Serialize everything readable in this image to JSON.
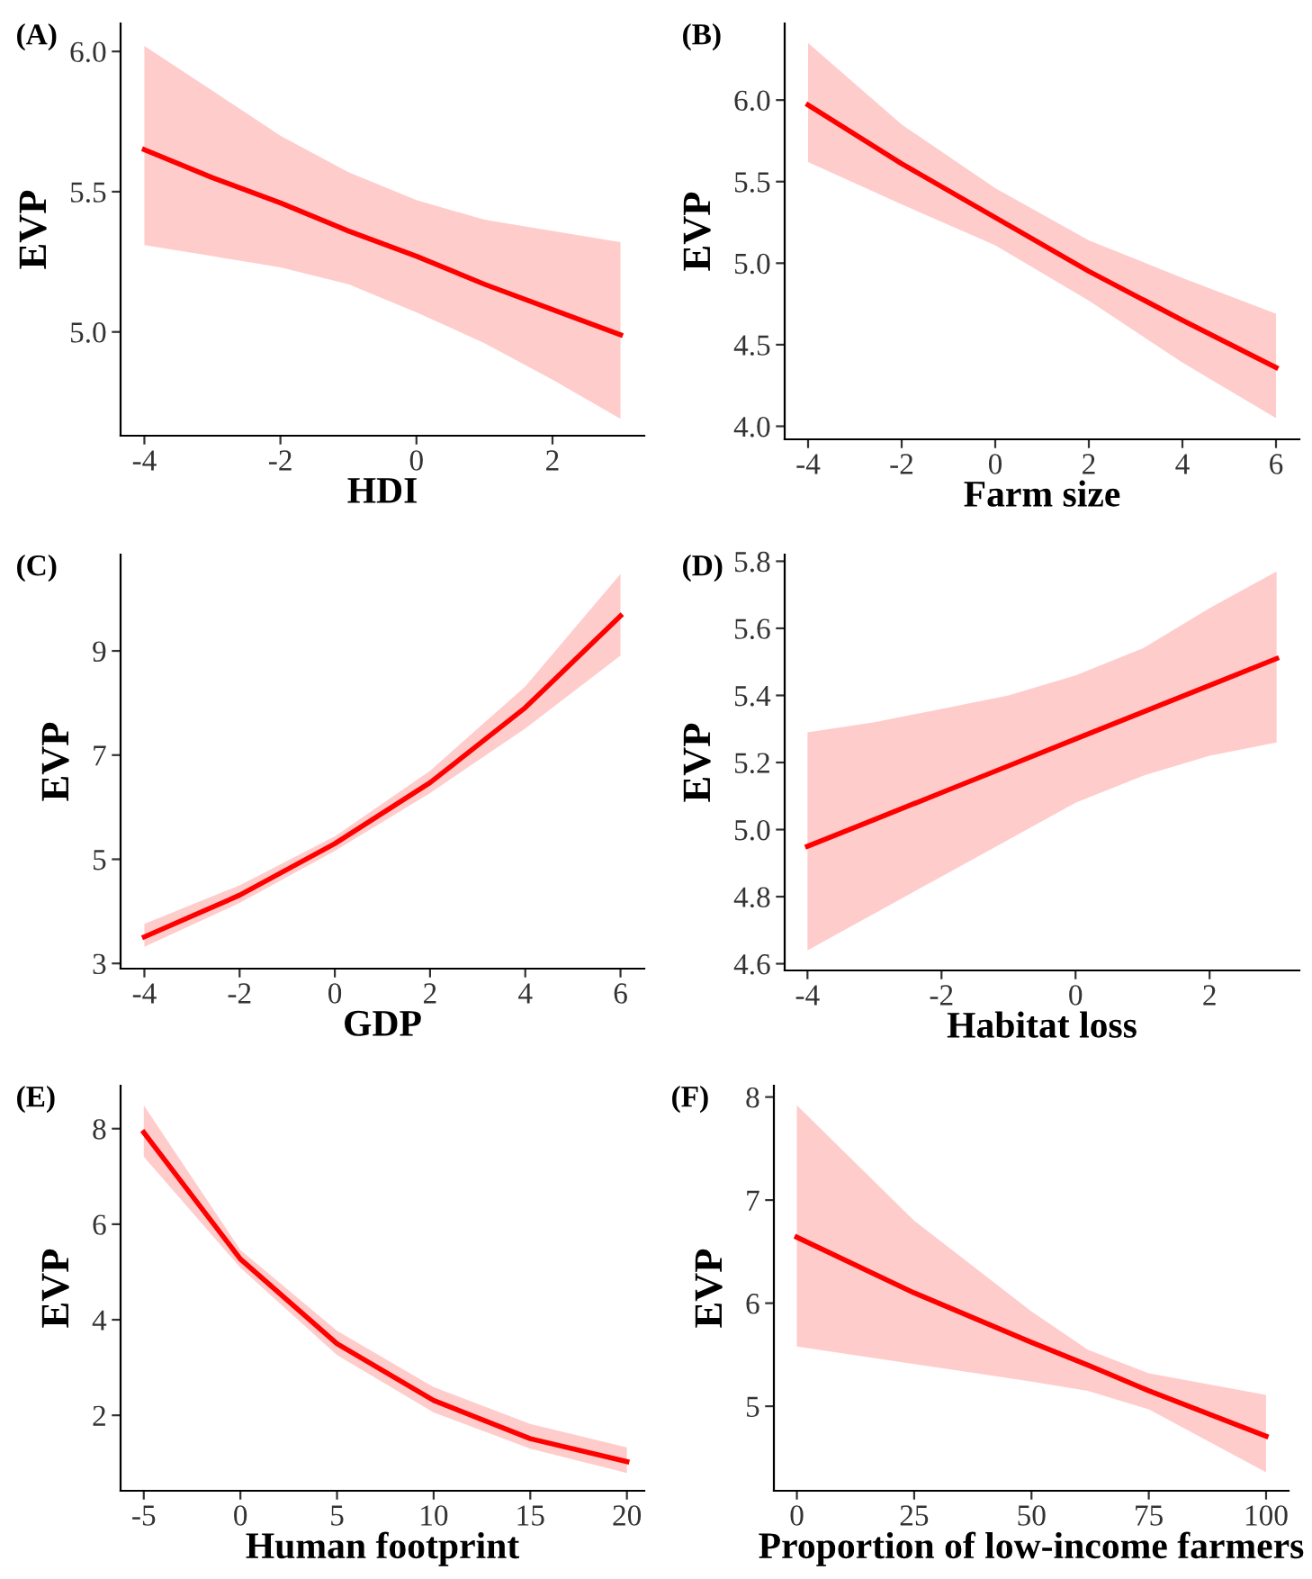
{
  "chart_data": [
    {
      "type": "line",
      "title": "(A)",
      "xlabel": "HDI",
      "ylabel": "EVP",
      "xlim": [
        -4.35,
        3.35
      ],
      "ylim": [
        4.63,
        6.1
      ],
      "xticks": [
        -4,
        -2,
        0,
        2
      ],
      "yticks": [
        {
          "value": 5,
          "label": "5.0"
        },
        5.5,
        {
          "value": 6,
          "label": "6.0"
        }
      ],
      "x": [
        -4,
        -3,
        -2,
        -1,
        0,
        1,
        2,
        3
      ],
      "series": [
        {
          "color": "#ff0000",
          "values": [
            5.65,
            5.55,
            5.46,
            5.36,
            5.27,
            5.17,
            5.08,
            4.99
          ],
          "lower": [
            5.31,
            5.27,
            5.23,
            5.17,
            5.07,
            4.96,
            4.83,
            4.69
          ],
          "upper": [
            6.02,
            5.86,
            5.7,
            5.57,
            5.47,
            5.4,
            5.36,
            5.32
          ]
        }
      ]
    },
    {
      "type": "line",
      "title": "(B)",
      "xlabel": "Farm size",
      "ylabel": "EVP",
      "xlim": [
        -4.5,
        6.5
      ],
      "ylim": [
        3.92,
        6.47
      ],
      "xticks": [
        -4,
        -2,
        0,
        2,
        4,
        6
      ],
      "yticks": [
        {
          "value": 4,
          "label": "4.0"
        },
        4.5,
        {
          "value": 5,
          "label": "5.0"
        },
        5.5,
        {
          "value": 6,
          "label": "6.0"
        }
      ],
      "x": [
        -4,
        -2,
        0,
        2,
        4,
        6
      ],
      "series": [
        {
          "color": "#ff0000",
          "values": [
            5.97,
            5.61,
            5.28,
            4.95,
            4.65,
            4.36
          ],
          "lower": [
            5.62,
            5.36,
            5.11,
            4.77,
            4.39,
            4.05
          ],
          "upper": [
            6.35,
            5.85,
            5.46,
            5.14,
            4.91,
            4.69
          ]
        }
      ]
    },
    {
      "type": "line",
      "title": "(C)",
      "xlabel": "GDP",
      "ylabel": "EVP",
      "xlim": [
        -4.5,
        6.5
      ],
      "ylim": [
        2.9,
        10.85
      ],
      "xticks": [
        -4,
        -2,
        0,
        2,
        4,
        6
      ],
      "yticks": [
        3,
        5,
        7,
        9
      ],
      "x": [
        -4,
        -2,
        0,
        2,
        4,
        6
      ],
      "series": [
        {
          "color": "#ff0000",
          "values": [
            3.51,
            4.31,
            5.3,
            6.47,
            7.91,
            9.67
          ],
          "lower": [
            3.32,
            4.16,
            5.16,
            6.27,
            7.51,
            8.91
          ],
          "upper": [
            3.76,
            4.5,
            5.44,
            6.7,
            8.32,
            10.48
          ]
        }
      ]
    },
    {
      "type": "line",
      "title": "(D)",
      "xlabel": "Habitat loss",
      "ylabel": "EVP",
      "xlim": [
        -4.34,
        3.34
      ],
      "ylim": [
        4.58,
        5.82
      ],
      "xticks": [
        -4,
        -2,
        0,
        2
      ],
      "yticks": [
        4.6,
        4.8,
        {
          "value": 5,
          "label": "5.0"
        },
        5.2,
        5.4,
        5.6,
        5.8
      ],
      "x": [
        -4,
        -3,
        -2,
        -1,
        0,
        1,
        2,
        3
      ],
      "series": [
        {
          "color": "#ff0000",
          "values": [
            4.95,
            5.03,
            5.11,
            5.19,
            5.27,
            5.35,
            5.43,
            5.51
          ],
          "lower": [
            4.64,
            4.75,
            4.86,
            4.97,
            5.08,
            5.16,
            5.22,
            5.26
          ],
          "upper": [
            5.29,
            5.32,
            5.36,
            5.4,
            5.46,
            5.54,
            5.66,
            5.77
          ]
        }
      ]
    },
    {
      "type": "line",
      "title": "(E)",
      "xlabel": "Human footprint",
      "ylabel": "EVP",
      "xlim": [
        -6.2,
        20.9
      ],
      "ylim": [
        0.42,
        8.9
      ],
      "xticks": [
        -5,
        0,
        5,
        10,
        15,
        20
      ],
      "yticks": [
        2,
        4,
        6,
        8
      ],
      "x": [
        -5,
        0,
        5,
        10,
        15,
        20
      ],
      "series": [
        {
          "color": "#ff0000",
          "values": [
            7.92,
            5.27,
            3.5,
            2.31,
            1.51,
            1.03
          ],
          "lower": [
            7.41,
            5.09,
            3.26,
            2.06,
            1.3,
            0.79
          ],
          "upper": [
            8.49,
            5.46,
            3.77,
            2.59,
            1.82,
            1.33
          ]
        }
      ]
    },
    {
      "type": "line",
      "title": "(F)",
      "xlabel": "Proportion of low-income farmers",
      "ylabel": "EVP",
      "xlim": [
        -4.9,
        104.8
      ],
      "ylim": [
        4.18,
        8.11
      ],
      "xticks": [
        0,
        25,
        50,
        75,
        100
      ],
      "yticks": [
        5,
        6,
        7,
        8
      ],
      "x": [
        0,
        25,
        50,
        62,
        75,
        100
      ],
      "series": [
        {
          "color": "#ff0000",
          "values": [
            6.64,
            6.1,
            5.62,
            5.4,
            5.15,
            4.71
          ],
          "lower": [
            5.58,
            5.41,
            5.24,
            5.15,
            4.97,
            4.36
          ],
          "upper": [
            7.92,
            6.8,
            5.92,
            5.55,
            5.32,
            5.11
          ]
        }
      ]
    }
  ]
}
